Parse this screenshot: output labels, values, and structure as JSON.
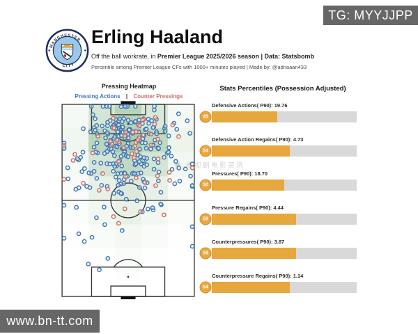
{
  "overlays": {
    "tg_badge": "TG: MYYJJPP",
    "site_badge": "www.bn-tt.com",
    "watermark": "◉ 电视剧电影资讯"
  },
  "header": {
    "title": "Erling Haaland",
    "subtitle_regular": "Off the ball workrate, in ",
    "subtitle_bold": "Premier League 2025/2026 season | Data: Statsbomb",
    "meta": "Percentile among Premier League CFs with 1000+ minutes played | Made by: @adnaaan433",
    "club_badge_top": "MANCHESTER",
    "club_badge_bottom": "CITY"
  },
  "left_panel": {
    "title": "Pressing Heatmap",
    "legend_separator": "|",
    "legend": [
      {
        "label": "Pressing Actions",
        "color": "#4179b4"
      },
      {
        "label": "Counter Pressings",
        "color": "#c97168"
      }
    ]
  },
  "right_panel": {
    "title": "Stats Percentiles (Possession Adjusted)"
  },
  "colors": {
    "bar_fill": "#e6a83d",
    "bar_track": "#d9d9d9",
    "badge_fill": "#eda63a",
    "badge_ring": "#cf8f2e",
    "heat_green": "#66a266",
    "pressing_blue": "#4179b4",
    "counter_red": "#c97168",
    "pitch_line": "#333333",
    "overlay_gray": "#676767",
    "city_navy": "#1e2e5c",
    "city_sky": "#9bc7e9"
  },
  "chart_data": [
    {
      "type": "heatmap",
      "title": "Pressing Heatmap",
      "subject": "Erling Haaland off-ball pressing locations on a vertical football pitch, attacking toward top goal",
      "legend": [
        "Pressing Actions",
        "Counter Pressings"
      ],
      "grid_cols": 5,
      "grid_rows": 8,
      "intensity": [
        [
          0.12,
          0.5,
          0.85,
          0.45,
          0.12
        ],
        [
          0.18,
          0.8,
          1.0,
          0.75,
          0.22
        ],
        [
          0.12,
          0.5,
          0.75,
          0.5,
          0.15
        ],
        [
          0.08,
          0.28,
          0.42,
          0.28,
          0.1
        ],
        [
          0.04,
          0.16,
          0.26,
          0.16,
          0.06
        ],
        [
          0.02,
          0.08,
          0.14,
          0.08,
          0.03
        ],
        [
          0.0,
          0.03,
          0.06,
          0.03,
          0.0
        ],
        [
          0.0,
          0.0,
          0.02,
          0.0,
          0.0
        ]
      ],
      "scatter_seed": 7,
      "scatter_clusters": [
        {
          "series": "pressing",
          "color": "#4179b4",
          "n": 115,
          "cx": 50,
          "cy": 22,
          "sx": 15,
          "sy": 9
        },
        {
          "series": "pressing",
          "color": "#4179b4",
          "n": 60,
          "cx": 50,
          "cy": 42,
          "sx": 20,
          "sy": 9
        },
        {
          "series": "pressing",
          "color": "#4179b4",
          "n": 42,
          "cx": 48,
          "cy": 62,
          "sx": 27,
          "sy": 11
        },
        {
          "series": "pressing",
          "color": "#4179b4",
          "n": 40,
          "cx": 50,
          "cy": 55,
          "sx": 40,
          "sy": 35
        },
        {
          "series": "counter",
          "color": "#c97168",
          "n": 30,
          "cx": 50,
          "cy": 26,
          "sx": 18,
          "sy": 10
        },
        {
          "series": "counter",
          "color": "#c97168",
          "n": 26,
          "cx": 46,
          "cy": 55,
          "sx": 33,
          "sy": 25
        }
      ]
    },
    {
      "type": "bar",
      "title": "Stats Percentiles (Possession Adjusted)",
      "orientation": "horizontal",
      "xlim": [
        0,
        100
      ],
      "categories": [
        "Defensive Actions( P90)",
        "Defensive Action Regains( P90)",
        "Pressures( P90)",
        "Pressure Regains( P90)",
        "Counterpressures( P90)",
        "Counterpressure Regains( P90)"
      ],
      "value_labels": [
        "19.76",
        "4.73",
        "18.70",
        "4.44",
        "3.87",
        "1.14"
      ],
      "percentiles": [
        45,
        54,
        50,
        58,
        58,
        54
      ]
    }
  ]
}
